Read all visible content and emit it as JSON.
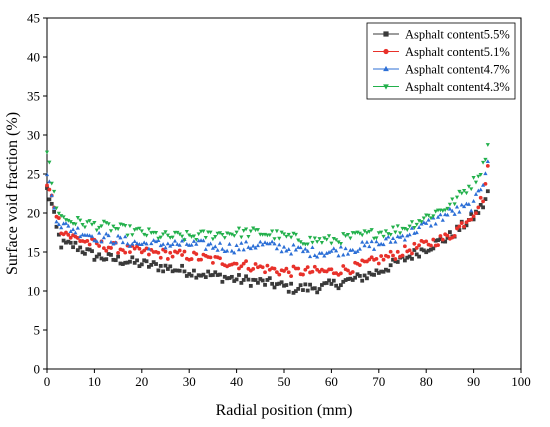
{
  "chart_data": {
    "type": "scatter",
    "xlabel": "Radial position (mm)",
    "ylabel": "Surface void fraction (%)",
    "xlim": [
      0,
      100
    ],
    "ylim": [
      0,
      45
    ],
    "xticks": [
      0,
      10,
      20,
      30,
      40,
      50,
      60,
      70,
      80,
      90,
      100
    ],
    "yticks": [
      0,
      5,
      10,
      15,
      20,
      25,
      30,
      35,
      40,
      45
    ],
    "grid": false,
    "legend_position": "top-right",
    "x_range_of_series": [
      0,
      93
    ],
    "series": [
      {
        "name": "Asphalt content5.5%",
        "color": "#3a3a3a",
        "marker": "square",
        "profile": [
          [
            0,
            23
          ],
          [
            1,
            21
          ],
          [
            2,
            18
          ],
          [
            3,
            16
          ],
          [
            6,
            15.8
          ],
          [
            10,
            14.5
          ],
          [
            15,
            14
          ],
          [
            20,
            13.5
          ],
          [
            30,
            12.5
          ],
          [
            40,
            11.5
          ],
          [
            47,
            11
          ],
          [
            52,
            10.3
          ],
          [
            58,
            10.5
          ],
          [
            65,
            11.5
          ],
          [
            70,
            12.5
          ],
          [
            75,
            14
          ],
          [
            80,
            15.5
          ],
          [
            85,
            17
          ],
          [
            90,
            19.5
          ],
          [
            92,
            21
          ],
          [
            93,
            22.5
          ]
        ]
      },
      {
        "name": "Asphalt content5.1%",
        "color": "#e8312a",
        "marker": "circle",
        "profile": [
          [
            0,
            23.5
          ],
          [
            1,
            22
          ],
          [
            2,
            20
          ],
          [
            3,
            18
          ],
          [
            5,
            17
          ],
          [
            10,
            16
          ],
          [
            15,
            15.5
          ],
          [
            20,
            15
          ],
          [
            30,
            14.5
          ],
          [
            40,
            13.5
          ],
          [
            45,
            13
          ],
          [
            50,
            12.5
          ],
          [
            55,
            12.5
          ],
          [
            60,
            12.5
          ],
          [
            65,
            13
          ],
          [
            70,
            14
          ],
          [
            75,
            15
          ],
          [
            80,
            16
          ],
          [
            85,
            17
          ],
          [
            90,
            20
          ],
          [
            92,
            22
          ],
          [
            93,
            25.5
          ]
        ]
      },
      {
        "name": "Asphalt content4.7%",
        "color": "#2c6fd6",
        "marker": "triangle-up",
        "profile": [
          [
            0,
            25.5
          ],
          [
            1,
            22
          ],
          [
            2,
            19.5
          ],
          [
            3,
            18.5
          ],
          [
            5,
            18
          ],
          [
            10,
            17
          ],
          [
            15,
            16.5
          ],
          [
            20,
            16
          ],
          [
            30,
            16
          ],
          [
            40,
            15.5
          ],
          [
            45,
            16
          ],
          [
            50,
            15.5
          ],
          [
            55,
            15
          ],
          [
            60,
            15
          ],
          [
            65,
            15.5
          ],
          [
            70,
            16
          ],
          [
            75,
            17
          ],
          [
            80,
            18.5
          ],
          [
            85,
            20
          ],
          [
            90,
            21
          ],
          [
            92,
            24
          ],
          [
            93,
            27
          ]
        ]
      },
      {
        "name": "Asphalt content4.3%",
        "color": "#22b04b",
        "marker": "triangle-down",
        "profile": [
          [
            0,
            28
          ],
          [
            1,
            24
          ],
          [
            2,
            21
          ],
          [
            3,
            19.5
          ],
          [
            5,
            19
          ],
          [
            10,
            18.5
          ],
          [
            15,
            18
          ],
          [
            20,
            17.5
          ],
          [
            25,
            17
          ],
          [
            30,
            17
          ],
          [
            40,
            17.5
          ],
          [
            45,
            17.5
          ],
          [
            50,
            17
          ],
          [
            55,
            16.5
          ],
          [
            60,
            16.5
          ],
          [
            65,
            17
          ],
          [
            70,
            17.5
          ],
          [
            75,
            18
          ],
          [
            80,
            19.5
          ],
          [
            85,
            21
          ],
          [
            90,
            24
          ],
          [
            92,
            26
          ],
          [
            93,
            29
          ]
        ]
      }
    ]
  }
}
